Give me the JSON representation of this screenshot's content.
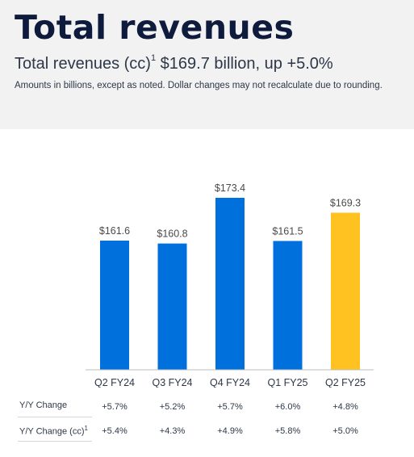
{
  "header": {
    "title": "Total revenues",
    "subtitle_prefix": "Total revenues (cc)",
    "subtitle_sup": "1",
    "subtitle_value": " $169.7 billion, up +5.0%",
    "note": "Amounts in billions, except as noted.  Dollar changes may not recalculate due to rounding."
  },
  "chart_data": {
    "type": "bar",
    "categories": [
      "Q2 FY24",
      "Q3 FY24",
      "Q4 FY24",
      "Q1 FY25",
      "Q2 FY25"
    ],
    "values": [
      161.6,
      160.8,
      173.4,
      161.5,
      169.3
    ],
    "data_labels": [
      "$161.6",
      "$160.8",
      "$173.4",
      "$161.5",
      "$169.3"
    ],
    "colors": [
      "#0071dc",
      "#0071dc",
      "#0071dc",
      "#0071dc",
      "#ffc220"
    ],
    "title": "",
    "xlabel": "",
    "ylabel": "",
    "grid": false,
    "legend": "none"
  },
  "yy_table": {
    "rows": [
      {
        "label": "Y/Y Change",
        "sup": "",
        "values": [
          "+5.7%",
          "+5.2%",
          "+5.7%",
          "+6.0%",
          "+4.8%"
        ]
      },
      {
        "label": "Y/Y Change (cc)",
        "sup": "1",
        "values": [
          "+5.4%",
          "+4.3%",
          "+4.9%",
          "+5.8%",
          "+5.0%"
        ]
      }
    ]
  }
}
